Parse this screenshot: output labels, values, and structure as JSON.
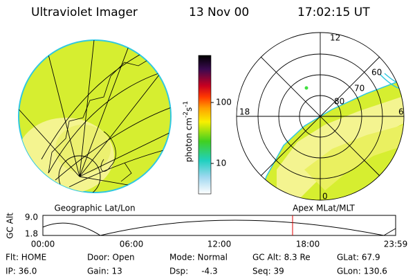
{
  "header": {
    "instrument": "Ultraviolet Imager",
    "date": "13 Nov 00",
    "time": "17:02:15 UT"
  },
  "geographic_panel": {
    "caption": "Geographic Lat/Lon"
  },
  "colorbar": {
    "unit_parts": [
      "photon cm",
      "-2",
      "s",
      "-1"
    ],
    "tick_labels": [
      "100",
      "10"
    ]
  },
  "polar_panel": {
    "caption": "Apex MLat/MLT",
    "mlt_labels": [
      "12",
      "18",
      "6",
      "0"
    ],
    "mlat_labels": [
      "60",
      "70",
      "80"
    ]
  },
  "altitude_plot": {
    "axis_label": "GC Alt",
    "y_labels": [
      "9.0",
      "1.8"
    ],
    "x_labels": [
      "00:00",
      "06:00",
      "12:00",
      "18:00",
      "23:59"
    ]
  },
  "status": {
    "row1": [
      "Flt: HOME",
      "Door: Open",
      "Mode: Normal",
      "GC Alt: 8.3 Re",
      "GLat: 67.9"
    ],
    "row2": [
      "IP: 36.0",
      "Gain: 13",
      "Dsp:     -4.3",
      "Seq: 39",
      "GLon: 130.6"
    ]
  }
}
